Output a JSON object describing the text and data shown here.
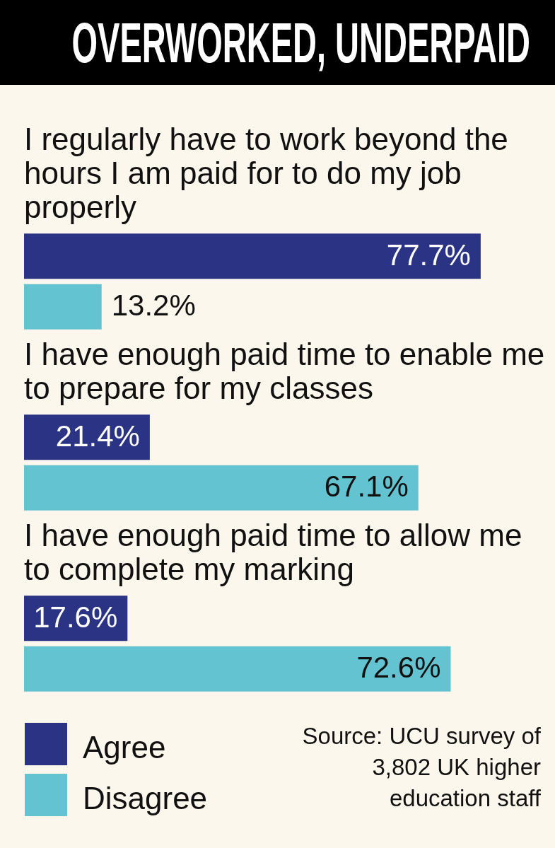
{
  "chart_data": {
    "type": "bar",
    "orientation": "horizontal",
    "title": "OVERWORKED, UNDERPAID",
    "categories": [
      "I regularly have to work beyond the hours I am paid for to do my job properly",
      "I have enough paid time to enable me to prepare for my classes",
      "I have enough paid time to allow me to complete my marking"
    ],
    "series": [
      {
        "name": "Agree",
        "color": "#2a3384",
        "values": [
          77.7,
          21.4,
          17.6
        ],
        "value_labels": [
          "77.7%",
          "21.4%",
          "17.6%"
        ]
      },
      {
        "name": "Disagree",
        "color": "#63c3d1",
        "values": [
          13.2,
          67.1,
          72.6
        ],
        "value_labels": [
          "13.2%",
          "67.1%",
          "72.6%"
        ]
      }
    ],
    "tick_labels": "y",
    "legend": "bottom left",
    "annotations": [
      "Source: UCU survey of 3,802 UK higher education staff"
    ]
  }
}
